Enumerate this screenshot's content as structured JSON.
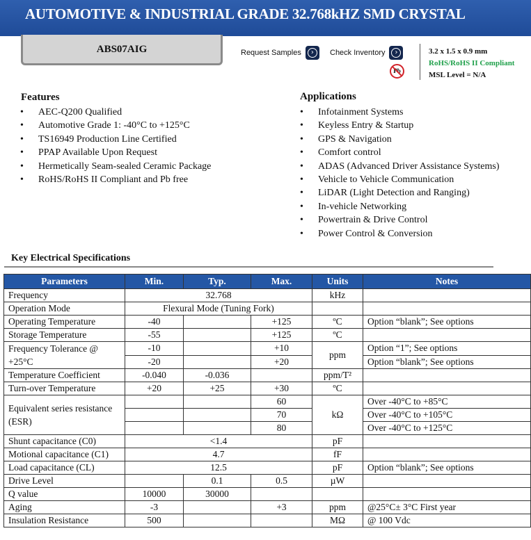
{
  "header": {
    "title": "AUTOMOTIVE & INDUSTRIAL GRADE 32.768kHZ SMD CRYSTAL",
    "part_number": "ABS07AIG",
    "request_samples": "Request Samples",
    "check_inventory": "Check Inventory",
    "pb_icon_text": "Pb",
    "dimensions": "3.2 x 1.5 x 0.9 mm",
    "rohs": "RoHS/RoHS II Compliant",
    "msl": "MSL Level = N/A",
    "colors": {
      "banner": "#1f4b98",
      "rohs": "#1fa04a",
      "pb": "#d2232a"
    }
  },
  "features": {
    "title": "Features",
    "items": [
      "AEC-Q200 Qualified",
      "Automotive Grade 1: -40°C to +125°C",
      "TS16949 Production Line Certified",
      "PPAP Available Upon Request",
      "Hermetically Seam-sealed Ceramic Package",
      "RoHS/RoHS II Compliant and Pb free"
    ]
  },
  "applications": {
    "title": "Applications",
    "items": [
      "Infotainment Systems",
      "Keyless Entry & Startup",
      "GPS & Navigation",
      "Comfort control",
      "ADAS (Advanced Driver Assistance Systems)",
      "Vehicle to Vehicle Communication",
      "LiDAR (Light Detection and Ranging)",
      "In-vehicle Networking",
      "Powertrain & Drive Control",
      "Power Control & Conversion"
    ]
  },
  "specs": {
    "title": "Key Electrical Specifications",
    "headers": [
      "Parameters",
      "Min.",
      "Typ.",
      "Max.",
      "Units",
      "Notes"
    ],
    "freq": [
      "Frequency",
      "32.768",
      "kHz",
      ""
    ],
    "opmode": [
      "Operation Mode",
      "Flexural Mode (Tuning Fork)"
    ],
    "optemp": [
      "Operating Temperature",
      "-40",
      "",
      "+125",
      "ºC",
      "Option “blank”; See options"
    ],
    "sttemp": [
      "Storage Temperature",
      "-55",
      "",
      "+125",
      "ºC",
      ""
    ],
    "tol": {
      "param": "Frequency Tolerance @ +25°C",
      "unit": "ppm",
      "rows": [
        [
          "-10",
          "",
          "+10",
          "Option “1”; See options"
        ],
        [
          "-20",
          "",
          "+20",
          "Option “blank”; See options"
        ]
      ]
    },
    "tc": [
      "Temperature Coefficient",
      "-0.040",
      "-0.036",
      "",
      "ppm/T²",
      ""
    ],
    "turn": [
      "Turn-over Temperature",
      "+20",
      "+25",
      "+30",
      "ºC",
      ""
    ],
    "esr": {
      "param": "Equivalent series resistance (ESR)",
      "unit": "kΩ",
      "rows": [
        [
          "",
          "",
          "60",
          "Over -40°C to +85°C"
        ],
        [
          "",
          "",
          "70",
          "Over -40°C to +105°C"
        ],
        [
          "",
          "",
          "80",
          "Over -40°C to +125°C"
        ]
      ]
    },
    "c0": [
      "Shunt capacitance (C0)",
      "<1.4",
      "pF",
      ""
    ],
    "c1": [
      "Motional capacitance (C1)",
      "4.7",
      "fF",
      ""
    ],
    "cl": [
      "Load capacitance (CL)",
      "12.5",
      "pF",
      "Option “blank”; See options"
    ],
    "drive": [
      "Drive Level",
      "",
      "0.1",
      "0.5",
      "µW",
      ""
    ],
    "q": [
      "Q value",
      "10000",
      "30000",
      "",
      "",
      ""
    ],
    "aging": [
      "Aging",
      "-3",
      "",
      "+3",
      "ppm",
      "@25°C± 3°C First year"
    ],
    "ir": [
      "Insulation Resistance",
      "500",
      "",
      "",
      "MΩ",
      "@ 100 Vdc"
    ]
  }
}
